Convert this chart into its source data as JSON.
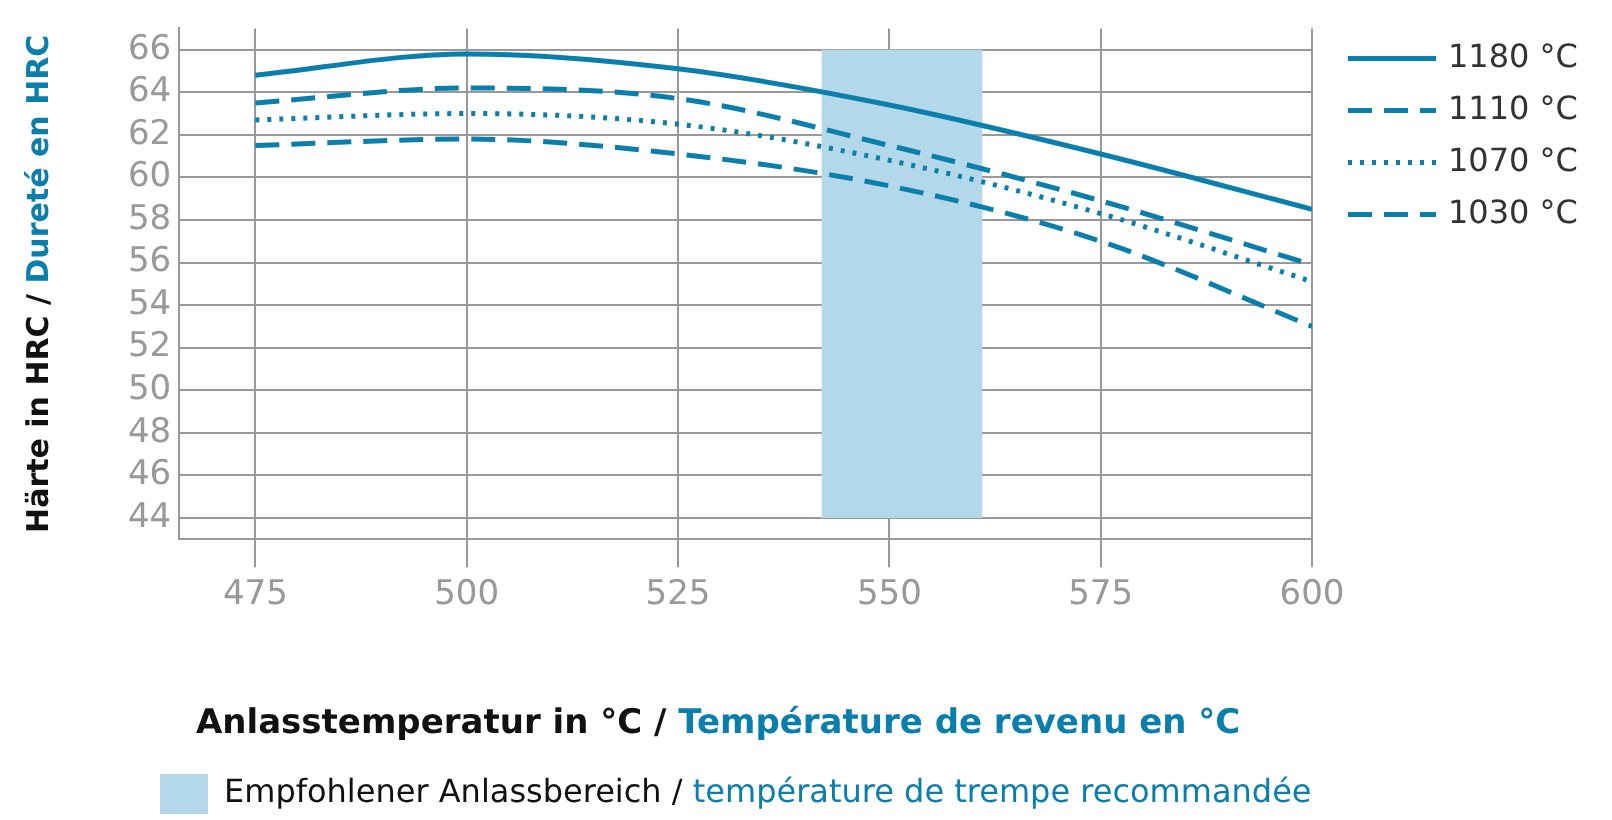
{
  "chart_data": {
    "type": "line",
    "xlabel": "Anlasstemperatur in °C / Température de revenu en °C",
    "ylabel": "Härte in HRC / Dureté en HRC",
    "x": [
      475,
      500,
      525,
      550,
      575,
      600
    ],
    "series": [
      {
        "name": "1180 °C",
        "color": "#0a7fab",
        "line_style": "solid",
        "values": [
          64.8,
          65.8,
          65.1,
          63.4,
          61.1,
          58.5
        ]
      },
      {
        "name": "1110 °C",
        "color": "#0a7fab",
        "line_style": "dashed",
        "values": [
          63.5,
          64.2,
          63.7,
          61.5,
          58.9,
          55.9
        ]
      },
      {
        "name": "1070 °C",
        "color": "#0a7fab",
        "line_style": "dotted",
        "values": [
          62.7,
          63.0,
          62.5,
          60.8,
          58.3,
          55.1
        ]
      },
      {
        "name": "1030 °C",
        "color": "#0a7fab",
        "line_style": "dashed",
        "values": [
          61.5,
          61.8,
          61.1,
          59.6,
          57.0,
          53.0
        ]
      }
    ],
    "xlim": [
      466,
      600
    ],
    "xticks": [
      475,
      500,
      525,
      550,
      575,
      600
    ],
    "ylim": [
      43,
      67
    ],
    "yticks": [
      44,
      46,
      48,
      50,
      52,
      54,
      56,
      58,
      60,
      62,
      64,
      66
    ],
    "bands": [
      {
        "axis": "x",
        "from": 542,
        "to": 561,
        "label": "Empfohlener Anlassbereich / température de trempe recommandée",
        "color": "#b3d8ea"
      }
    ],
    "grid": true,
    "legend": "right",
    "marker": "none"
  }
}
